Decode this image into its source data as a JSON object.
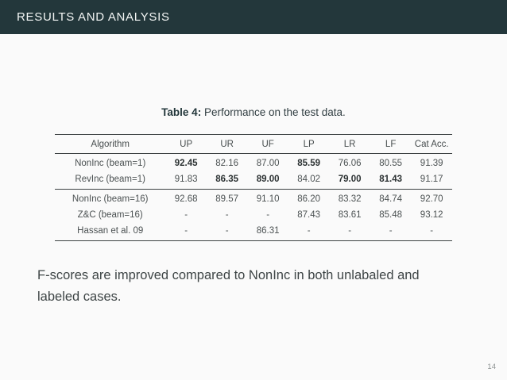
{
  "slide": {
    "header": {
      "title": "RESULTS AND ANALYSIS"
    },
    "caption": {
      "label": "Table 4:",
      "text": "Performance on the test data."
    },
    "table": {
      "columns": [
        "Algorithm",
        "UP",
        "UR",
        "UF",
        "LP",
        "LR",
        "LF",
        "Cat Acc."
      ],
      "rows": [
        {
          "cells": [
            {
              "t": "NonInc (beam=1)"
            },
            {
              "t": "92.45",
              "b": true
            },
            {
              "t": "82.16"
            },
            {
              "t": "87.00"
            },
            {
              "t": "85.59",
              "b": true
            },
            {
              "t": "76.06"
            },
            {
              "t": "80.55"
            },
            {
              "t": "91.39"
            }
          ]
        },
        {
          "cells": [
            {
              "t": "RevInc (beam=1)"
            },
            {
              "t": "91.83"
            },
            {
              "t": "86.35",
              "b": true
            },
            {
              "t": "89.00",
              "b": true
            },
            {
              "t": "84.02"
            },
            {
              "t": "79.00",
              "b": true
            },
            {
              "t": "81.43",
              "b": true
            },
            {
              "t": "91.17"
            }
          ]
        },
        {
          "cells": [
            {
              "t": "NonInc (beam=16)"
            },
            {
              "t": "92.68"
            },
            {
              "t": "89.57"
            },
            {
              "t": "91.10"
            },
            {
              "t": "86.20"
            },
            {
              "t": "83.32"
            },
            {
              "t": "84.74"
            },
            {
              "t": "92.70"
            }
          ]
        },
        {
          "cells": [
            {
              "t": "Z&C (beam=16)"
            },
            {
              "t": "-"
            },
            {
              "t": "-"
            },
            {
              "t": "-"
            },
            {
              "t": "87.43"
            },
            {
              "t": "83.61"
            },
            {
              "t": "85.48"
            },
            {
              "t": "93.12"
            }
          ]
        },
        {
          "cells": [
            {
              "t": "Hassan et al. 09"
            },
            {
              "t": "-"
            },
            {
              "t": "-"
            },
            {
              "t": "86.31"
            },
            {
              "t": "-"
            },
            {
              "t": "-"
            },
            {
              "t": "-"
            },
            {
              "t": "-"
            }
          ]
        }
      ]
    },
    "body_text": "F-scores are improved compared to NonInc in both unlabaled and labeled cases.",
    "page_number": "14",
    "colors": {
      "header_bg": "#23373b",
      "header_text": "#f2f5f4",
      "background": "#fafafa",
      "rule": "#3c4142",
      "table_text": "#4b5152",
      "body_text": "#3e4546",
      "page_number": "#8f9494"
    }
  }
}
